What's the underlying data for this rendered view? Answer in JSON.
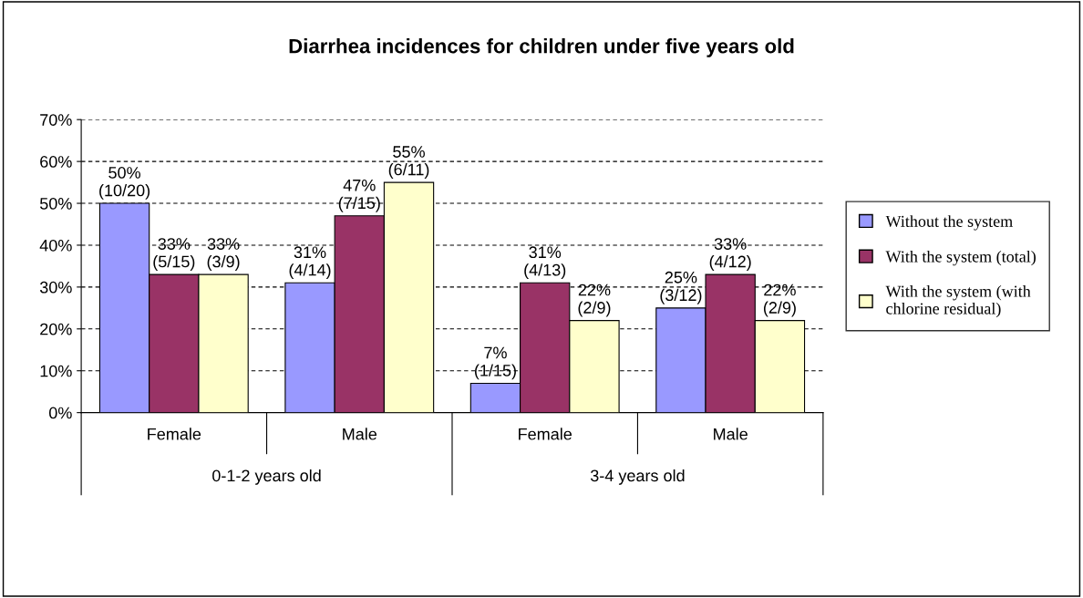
{
  "chart_data": {
    "type": "bar",
    "title": "Diarrhea incidences for children under five years old",
    "categories": [
      "Female",
      "Male",
      "Female",
      "Male"
    ],
    "annotations": [
      "0-1-2 years old",
      "3-4 years old"
    ],
    "series": [
      {
        "name": "Without the system",
        "color": "#9999ff",
        "values": [
          50,
          31,
          7,
          25
        ],
        "value_labels": [
          "50%\n(10/20)",
          "31%\n(4/14)",
          "7%\n(1/15)",
          "25%\n(3/12)"
        ]
      },
      {
        "name": "With the system (total)",
        "color": "#993366",
        "values": [
          33,
          47,
          31,
          33
        ],
        "value_labels": [
          "33%\n(5/15)",
          "47%\n(7/15)",
          "31%\n(4/13)",
          "33%\n(4/12)"
        ]
      },
      {
        "name": "With the system (with\nchlorine residual)",
        "color": "#ffffcc",
        "values": [
          33,
          55,
          22,
          22
        ],
        "value_labels": [
          "33%\n(3/9)",
          "55%\n(6/11)",
          "22%\n(2/9)",
          "22%\n(2/9)"
        ]
      }
    ],
    "ylim": [
      0,
      70
    ],
    "yticks": [
      {
        "value": 0,
        "label": "0%"
      },
      {
        "value": 10,
        "label": "10%"
      },
      {
        "value": 20,
        "label": "20%"
      },
      {
        "value": 30,
        "label": "30%"
      },
      {
        "value": 40,
        "label": "40%"
      },
      {
        "value": 50,
        "label": "50%"
      },
      {
        "value": 60,
        "label": "60%"
      },
      {
        "value": 70,
        "label": "70%"
      }
    ],
    "grid": "y",
    "legend": "right"
  }
}
